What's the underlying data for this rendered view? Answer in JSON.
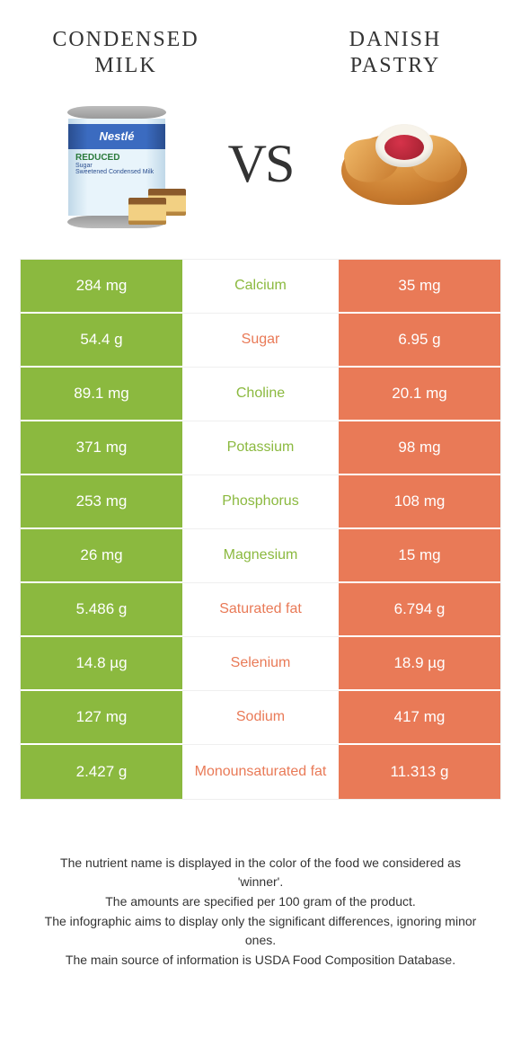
{
  "header": {
    "left_title": "CONDENSED MILK",
    "right_title": "DANISH PASTRY",
    "vs": "VS"
  },
  "can": {
    "brand": "Nestlé",
    "line1": "REDUCED",
    "line2": "Sugar",
    "line3": "Sweetened Condensed Milk"
  },
  "colors": {
    "left": "#8bb93f",
    "right": "#e97a57"
  },
  "rows": [
    {
      "left": "284 mg",
      "name": "Calcium",
      "right": "35 mg",
      "winner": "left"
    },
    {
      "left": "54.4 g",
      "name": "Sugar",
      "right": "6.95 g",
      "winner": "right"
    },
    {
      "left": "89.1 mg",
      "name": "Choline",
      "right": "20.1 mg",
      "winner": "left"
    },
    {
      "left": "371 mg",
      "name": "Potassium",
      "right": "98 mg",
      "winner": "left"
    },
    {
      "left": "253 mg",
      "name": "Phosphorus",
      "right": "108 mg",
      "winner": "left"
    },
    {
      "left": "26 mg",
      "name": "Magnesium",
      "right": "15 mg",
      "winner": "left"
    },
    {
      "left": "5.486 g",
      "name": "Saturated fat",
      "right": "6.794 g",
      "winner": "right"
    },
    {
      "left": "14.8 µg",
      "name": "Selenium",
      "right": "18.9 µg",
      "winner": "right"
    },
    {
      "left": "127 mg",
      "name": "Sodium",
      "right": "417 mg",
      "winner": "right"
    },
    {
      "left": "2.427 g",
      "name": "Monounsaturated fat",
      "right": "11.313 g",
      "winner": "right"
    }
  ],
  "footer": {
    "l1": "The nutrient name is displayed in the color of the food we considered as 'winner'.",
    "l2": "The amounts are specified per 100 gram of the product.",
    "l3": "The infographic aims to display only the significant differences, ignoring minor ones.",
    "l4": "The main source of information is USDA Food Composition Database."
  }
}
